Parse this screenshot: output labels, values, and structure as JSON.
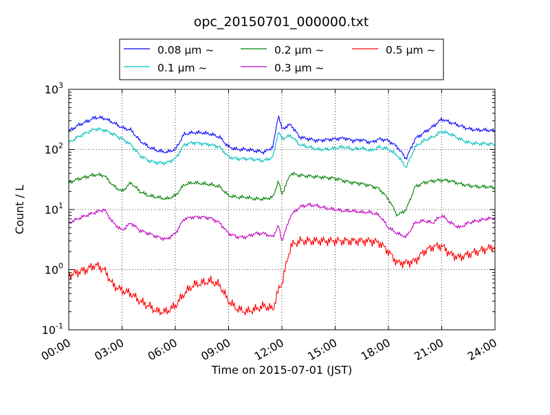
{
  "chart_data": {
    "type": "line",
    "title": "opc_20150701_000000.txt",
    "xlabel": "Time on 2015-07-01 (JST)",
    "ylabel": "Count / L",
    "x_axis": {
      "unit": "hours",
      "range": [
        0,
        24
      ],
      "ticks": [
        0,
        3,
        6,
        9,
        12,
        15,
        18,
        21,
        24
      ],
      "tick_labels": [
        "00:00",
        "03:00",
        "06:00",
        "09:00",
        "12:00",
        "15:00",
        "18:00",
        "21:00",
        "24:00"
      ]
    },
    "y_axis": {
      "scale": "log",
      "range": [
        0.1,
        1000
      ],
      "ticks": [
        0.1,
        1,
        10,
        100,
        1000
      ],
      "tick_labels": [
        {
          "base": "10",
          "exp": "-1"
        },
        {
          "base": "10",
          "exp": "0"
        },
        {
          "base": "10",
          "exp": "1"
        },
        {
          "base": "10",
          "exp": "2"
        },
        {
          "base": "10",
          "exp": "3"
        }
      ]
    },
    "grid": true,
    "legend": "top-center",
    "x": [
      0,
      0.5,
      1,
      1.5,
      2,
      2.5,
      3,
      3.5,
      4,
      4.5,
      5,
      5.5,
      6,
      6.5,
      7,
      7.5,
      8,
      8.5,
      9,
      9.5,
      10,
      10.5,
      11,
      11.5,
      11.8,
      12,
      12.5,
      13,
      13.5,
      14,
      14.5,
      15,
      15.5,
      16,
      16.5,
      17,
      17.5,
      18,
      18.5,
      19,
      19.5,
      20,
      20.5,
      21,
      21.5,
      22,
      22.5,
      23,
      23.5,
      24
    ],
    "series": [
      {
        "name": "0.08 μm ~",
        "color": "#0000ff",
        "values": [
          200,
          250,
          290,
          340,
          330,
          280,
          230,
          210,
          140,
          110,
          95,
          90,
          100,
          180,
          190,
          190,
          180,
          160,
          110,
          100,
          100,
          95,
          90,
          110,
          380,
          220,
          260,
          160,
          150,
          140,
          145,
          150,
          155,
          140,
          145,
          130,
          150,
          140,
          110,
          70,
          150,
          190,
          240,
          320,
          280,
          250,
          220,
          210,
          210,
          205
        ]
      },
      {
        "name": "0.1 μm ~",
        "color": "#00bfbf",
        "values": [
          130,
          160,
          190,
          220,
          210,
          180,
          150,
          120,
          80,
          65,
          60,
          60,
          70,
          120,
          130,
          125,
          120,
          110,
          75,
          70,
          70,
          68,
          65,
          75,
          200,
          150,
          170,
          120,
          110,
          100,
          100,
          105,
          110,
          100,
          105,
          95,
          110,
          100,
          80,
          50,
          110,
          140,
          160,
          200,
          180,
          150,
          130,
          125,
          125,
          120
        ]
      },
      {
        "name": "0.2 μm ~",
        "color": "#008000",
        "values": [
          28,
          32,
          35,
          38,
          37,
          25,
          20,
          28,
          20,
          17,
          16,
          15,
          17,
          26,
          28,
          27,
          26,
          24,
          17,
          16,
          16,
          15,
          15,
          16,
          30,
          18,
          40,
          37,
          36,
          35,
          34,
          33,
          30,
          28,
          27,
          25,
          22,
          15,
          8,
          10,
          24,
          28,
          30,
          31,
          30,
          27,
          25,
          24,
          24,
          23
        ]
      },
      {
        "name": "0.3 μm ~",
        "color": "#bf00bf",
        "values": [
          6,
          7,
          8,
          9,
          10,
          6,
          4.5,
          6,
          4.5,
          4,
          3.5,
          3.2,
          4,
          7,
          7.5,
          7.5,
          7.2,
          6,
          4,
          3.5,
          3.5,
          4,
          4,
          3.5,
          5.5,
          3,
          8,
          11,
          12,
          11.5,
          10.5,
          10,
          9.5,
          9.5,
          9,
          9,
          8,
          5,
          4,
          3.5,
          6,
          6.5,
          6,
          8,
          6,
          5,
          6,
          6.5,
          7,
          7.2
        ]
      },
      {
        "name": "0.5 μm ~",
        "color": "#ff0000",
        "values": [
          0.8,
          0.9,
          1.0,
          1.2,
          1.0,
          0.55,
          0.45,
          0.4,
          0.3,
          0.25,
          0.2,
          0.2,
          0.25,
          0.4,
          0.55,
          0.6,
          0.65,
          0.55,
          0.3,
          0.22,
          0.2,
          0.22,
          0.25,
          0.22,
          0.45,
          0.6,
          2.5,
          3,
          3,
          3,
          3,
          3,
          3,
          3,
          3,
          3,
          2.8,
          2,
          1.3,
          1.3,
          1.4,
          2,
          2.4,
          2.5,
          1.8,
          1.6,
          1.8,
          2,
          2.2,
          2.4
        ]
      }
    ]
  }
}
